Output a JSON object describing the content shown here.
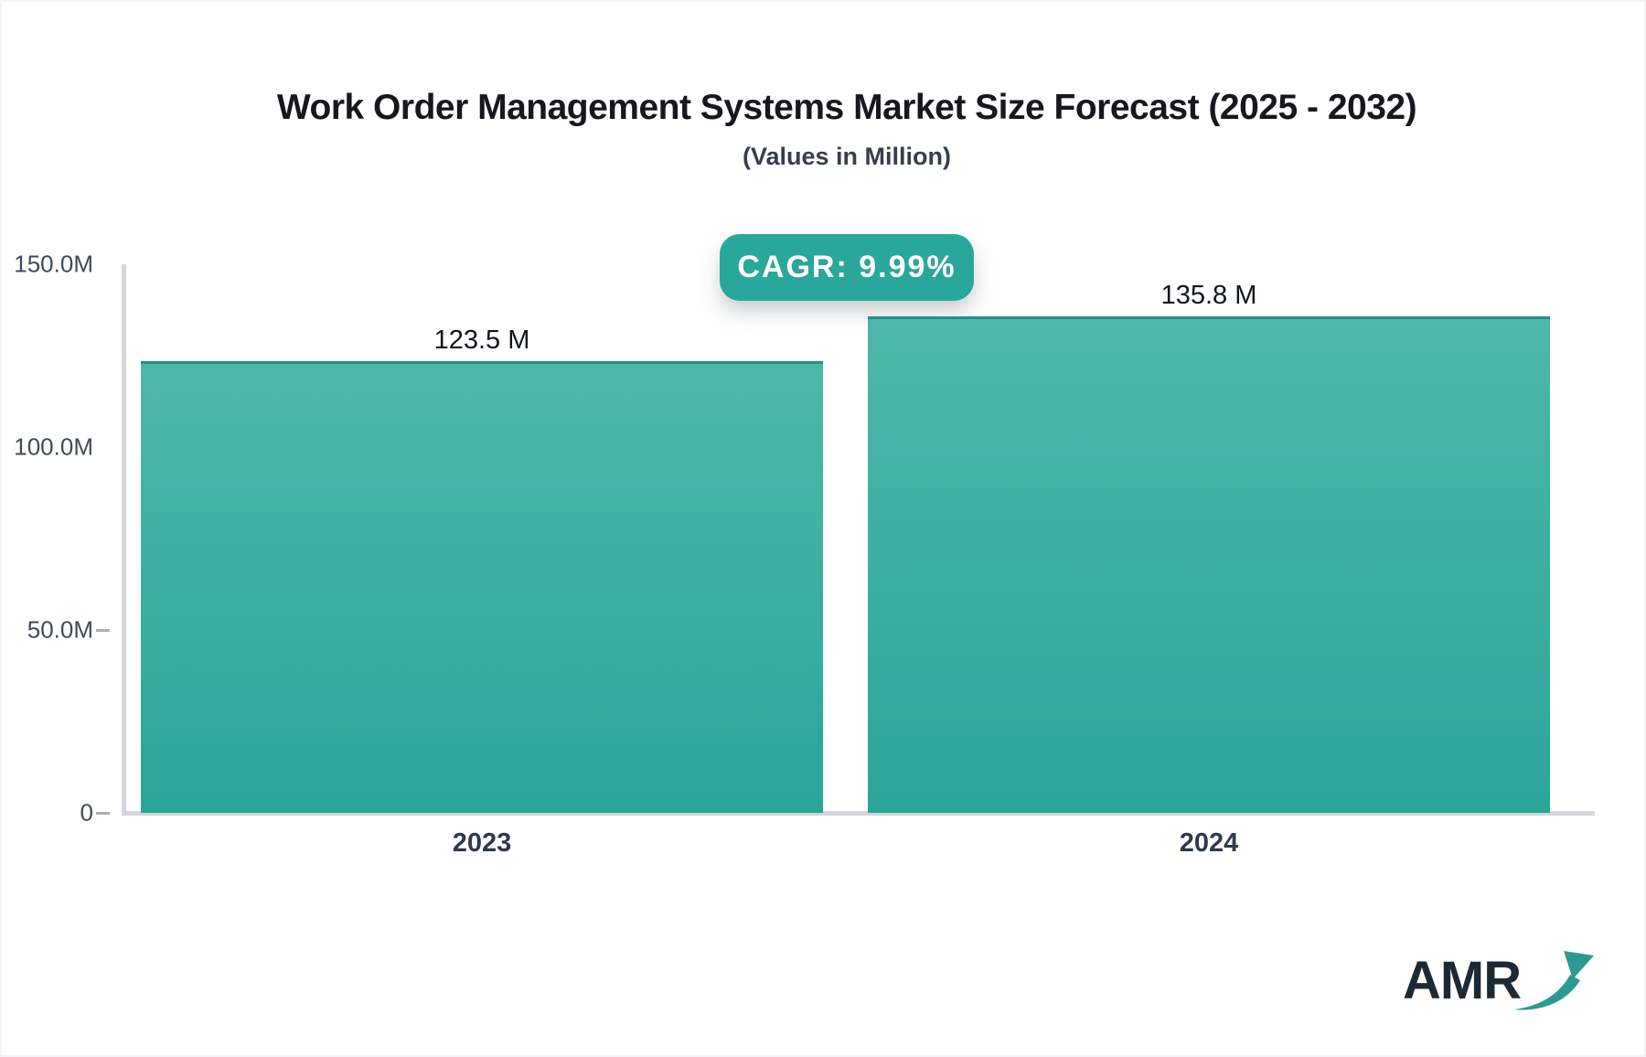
{
  "chart_data": {
    "type": "bar",
    "title": "Work Order Management Systems Market Size Forecast (2025 - 2032)",
    "subtitle": "(Values in Million)",
    "cagr_badge": "CAGR: 9.99%",
    "categories": [
      "2023",
      "2024"
    ],
    "values": [
      123.5,
      135.8
    ],
    "value_labels": [
      "123.5 M",
      "135.8 M"
    ],
    "unit": "Million",
    "ylim": [
      0,
      150
    ],
    "y_ticks": [
      {
        "label": "150.0M",
        "value": 150,
        "dash": false
      },
      {
        "label": "100.0M",
        "value": 100,
        "dash": false
      },
      {
        "label": "50.0M",
        "value": 50,
        "dash": true
      },
      {
        "label": "0",
        "value": 0,
        "dash": true
      }
    ],
    "grid": false,
    "legend": false
  },
  "branding": {
    "logo_text": "AMR"
  },
  "colors": {
    "bar_top": "#4db7aa",
    "bar_bottom": "#2aa699",
    "bar_border": "#1f9088",
    "badge_bg": "#2aa79b",
    "axis": "#d4d8dc",
    "title": "#16181d",
    "subtitle": "#353e4f",
    "tick_label": "#3f4a5c",
    "year_label": "#2d3950",
    "logo_navy": "#1d2936",
    "logo_teal": "#2d9a92"
  }
}
